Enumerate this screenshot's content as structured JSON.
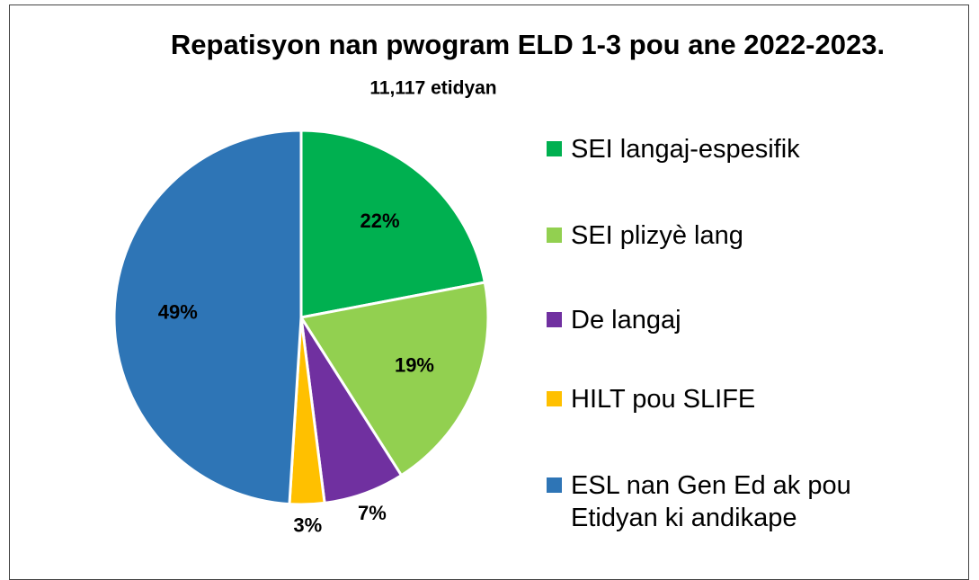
{
  "chart_data": {
    "type": "pie",
    "title": "Repatisyon nan pwogram ELD 1-3 pou ane 2022-2023.",
    "subtitle": "11,117 etidyan",
    "categories": [
      "SEI langaj-espesifik",
      "SEI plizyè lang",
      "De langaj",
      "HILT pou SLIFE",
      "ESL nan Gen Ed ak pou Etidyan ki andikape"
    ],
    "values": [
      22,
      19,
      7,
      3,
      49
    ],
    "value_labels": [
      "22%",
      "19%",
      "7%",
      "3%",
      "49%"
    ],
    "colors": [
      "#00b050",
      "#92d050",
      "#7030a0",
      "#ffc000",
      "#2e75b6"
    ],
    "legend": "right"
  }
}
